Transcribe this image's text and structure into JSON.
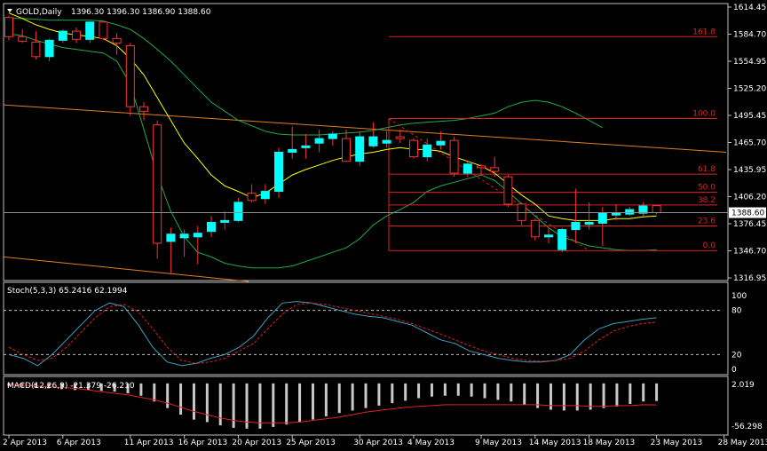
{
  "chart_header": {
    "symbol_timeframe": "GOLD,Daily",
    "ohlc": "1396.30 1396.30 1386.90 1388.60",
    "stoch_label": "Stoch(5,3,3) 65.2416 62.1994",
    "macd_label": "MACD(12,26,9) -21.379 -26.210"
  },
  "colors": {
    "background": "#000000",
    "grid_frame": "#c0c0c0",
    "bull_candle": "#00ffff",
    "bear_candle": "#000000",
    "bear_outline": "#ff3030",
    "wick": "#ff3030",
    "ma_line": "#ffff00",
    "bollinger": "#22aa44",
    "fibo": "#dd2222",
    "trend_channel": "#e08020",
    "stoch_main": "#40a0c0",
    "stoch_signal": "#e02020",
    "macd_hist": "#c8c8c8",
    "macd_signal": "#e02020",
    "price_tag": "#ffffff"
  },
  "chart_data": {
    "type": "candlestick",
    "symbol": "GOLD",
    "timeframe": "Daily",
    "x_tick_labels": [
      "2 Apr 2013",
      "6 Apr 2013",
      "11 Apr 2013",
      "16 Apr 2013",
      "20 Apr 2013",
      "25 Apr 2013",
      "30 Apr 2013",
      "4 May 2013",
      "9 May 2013",
      "14 May 2013",
      "18 May 2013",
      "23 May 2013",
      "28 May 2013"
    ],
    "x_tick_bar_index": [
      0,
      4,
      9,
      13,
      17,
      21,
      26,
      30,
      35,
      39,
      43,
      48,
      53
    ],
    "price_axis": {
      "ticks": [
        1614.45,
        1584.7,
        1554.95,
        1525.2,
        1495.45,
        1465.7,
        1435.95,
        1406.2,
        1376.45,
        1346.7,
        1316.95
      ],
      "ylim": [
        1316.95,
        1614.45
      ],
      "current_price": 1388.6
    },
    "candles": [
      {
        "o": 1603,
        "h": 1605,
        "l": 1578,
        "c": 1582
      },
      {
        "o": 1582,
        "h": 1590,
        "l": 1575,
        "c": 1577
      },
      {
        "o": 1576,
        "h": 1588,
        "l": 1557,
        "c": 1560
      },
      {
        "o": 1560,
        "h": 1580,
        "l": 1555,
        "c": 1578
      },
      {
        "o": 1578,
        "h": 1590,
        "l": 1575,
        "c": 1588
      },
      {
        "o": 1588,
        "h": 1592,
        "l": 1575,
        "c": 1579
      },
      {
        "o": 1579,
        "h": 1598,
        "l": 1575,
        "c": 1598
      },
      {
        "o": 1598,
        "h": 1598,
        "l": 1578,
        "c": 1580
      },
      {
        "o": 1580,
        "h": 1586,
        "l": 1562,
        "c": 1575
      },
      {
        "o": 1572,
        "h": 1575,
        "l": 1495,
        "c": 1505
      },
      {
        "o": 1505,
        "h": 1510,
        "l": 1490,
        "c": 1500
      },
      {
        "o": 1485,
        "h": 1490,
        "l": 1338,
        "c": 1355
      },
      {
        "o": 1357,
        "h": 1372,
        "l": 1322,
        "c": 1365
      },
      {
        "o": 1361,
        "h": 1370,
        "l": 1340,
        "c": 1365
      },
      {
        "o": 1362,
        "h": 1374,
        "l": 1332,
        "c": 1366
      },
      {
        "o": 1368,
        "h": 1385,
        "l": 1362,
        "c": 1378
      },
      {
        "o": 1378,
        "h": 1390,
        "l": 1370,
        "c": 1380
      },
      {
        "o": 1380,
        "h": 1405,
        "l": 1378,
        "c": 1400
      },
      {
        "o": 1410,
        "h": 1420,
        "l": 1400,
        "c": 1402
      },
      {
        "o": 1404,
        "h": 1420,
        "l": 1398,
        "c": 1412
      },
      {
        "o": 1412,
        "h": 1460,
        "l": 1405,
        "c": 1455
      },
      {
        "o": 1455,
        "h": 1483,
        "l": 1448,
        "c": 1458
      },
      {
        "o": 1460,
        "h": 1475,
        "l": 1448,
        "c": 1462
      },
      {
        "o": 1465,
        "h": 1480,
        "l": 1455,
        "c": 1470
      },
      {
        "o": 1470,
        "h": 1478,
        "l": 1462,
        "c": 1475
      },
      {
        "o": 1470,
        "h": 1480,
        "l": 1445,
        "c": 1445
      },
      {
        "o": 1445,
        "h": 1478,
        "l": 1440,
        "c": 1472
      },
      {
        "o": 1462,
        "h": 1488,
        "l": 1460,
        "c": 1472
      },
      {
        "o": 1465,
        "h": 1478,
        "l": 1460,
        "c": 1468
      },
      {
        "o": 1472,
        "h": 1480,
        "l": 1465,
        "c": 1470
      },
      {
        "o": 1468,
        "h": 1470,
        "l": 1448,
        "c": 1450
      },
      {
        "o": 1450,
        "h": 1470,
        "l": 1445,
        "c": 1463
      },
      {
        "o": 1463,
        "h": 1478,
        "l": 1458,
        "c": 1467
      },
      {
        "o": 1468,
        "h": 1472,
        "l": 1428,
        "c": 1432
      },
      {
        "o": 1432,
        "h": 1445,
        "l": 1428,
        "c": 1442
      },
      {
        "o": 1440,
        "h": 1442,
        "l": 1430,
        "c": 1438
      },
      {
        "o": 1438,
        "h": 1450,
        "l": 1428,
        "c": 1434
      },
      {
        "o": 1428,
        "h": 1430,
        "l": 1395,
        "c": 1398
      },
      {
        "o": 1398,
        "h": 1400,
        "l": 1375,
        "c": 1380
      },
      {
        "o": 1380,
        "h": 1382,
        "l": 1358,
        "c": 1362
      },
      {
        "o": 1362,
        "h": 1372,
        "l": 1355,
        "c": 1364
      },
      {
        "o": 1348,
        "h": 1372,
        "l": 1345,
        "c": 1370
      },
      {
        "o": 1370,
        "h": 1415,
        "l": 1355,
        "c": 1378
      },
      {
        "o": 1376,
        "h": 1400,
        "l": 1370,
        "c": 1378
      },
      {
        "o": 1377,
        "h": 1395,
        "l": 1352,
        "c": 1388
      },
      {
        "o": 1386,
        "h": 1398,
        "l": 1380,
        "c": 1388
      },
      {
        "o": 1387,
        "h": 1395,
        "l": 1385,
        "c": 1392
      },
      {
        "o": 1388,
        "h": 1400,
        "l": 1385,
        "c": 1396
      },
      {
        "o": 1396.3,
        "h": 1396.3,
        "l": 1386.9,
        "c": 1388.6
      }
    ],
    "ma_fast": [
      1608,
      1602,
      1595,
      1590,
      1586,
      1584,
      1582,
      1580,
      1572,
      1558,
      1540,
      1515,
      1490,
      1465,
      1448,
      1430,
      1418,
      1412,
      1405,
      1410,
      1420,
      1430,
      1436,
      1441,
      1446,
      1450,
      1453,
      1455,
      1458,
      1460,
      1458,
      1458,
      1456,
      1450,
      1445,
      1440,
      1432,
      1420,
      1408,
      1398,
      1385,
      1382,
      1380,
      1380,
      1380,
      1382,
      1382,
      1384,
      1385
    ],
    "boll_upper": [
      1602,
      1602,
      1601,
      1600,
      1600,
      1600,
      1600,
      1599,
      1595,
      1590,
      1580,
      1568,
      1555,
      1540,
      1525,
      1510,
      1500,
      1490,
      1484,
      1478,
      1475,
      1474,
      1474,
      1474,
      1475,
      1476,
      1477,
      1479,
      1482,
      1485,
      1487,
      1488,
      1489,
      1490,
      1492,
      1495,
      1498,
      1505,
      1510,
      1512,
      1510,
      1505,
      1498,
      1490,
      1482
    ],
    "boll_lower": [
      1585,
      1583,
      1578,
      1574,
      1570,
      1568,
      1566,
      1564,
      1555,
      1530,
      1480,
      1430,
      1390,
      1362,
      1345,
      1340,
      1333,
      1330,
      1328,
      1328,
      1328,
      1330,
      1335,
      1340,
      1345,
      1350,
      1360,
      1375,
      1385,
      1392,
      1400,
      1412,
      1418,
      1422,
      1426,
      1430,
      1424,
      1412,
      1398,
      1385,
      1372,
      1362,
      1357,
      1352,
      1350,
      1348,
      1347,
      1347,
      1348
    ],
    "fibonacci": {
      "levels": [
        "161.8",
        "100.0",
        "61.8",
        "50.0",
        "38.2",
        "23.6",
        "0.0"
      ],
      "prices": [
        1582,
        1492,
        1431,
        1411,
        1397,
        1374,
        1347
      ]
    },
    "stochastic": {
      "label": "Stoch(5,3,3)",
      "main": 65.2416,
      "signal": 62.1994,
      "axis_ticks": [
        100,
        80,
        20,
        0
      ],
      "levels": [
        80,
        20
      ],
      "main_series": [
        20,
        15,
        5,
        20,
        40,
        60,
        80,
        90,
        85,
        60,
        30,
        10,
        5,
        8,
        15,
        20,
        30,
        45,
        70,
        90,
        92,
        90,
        85,
        80,
        75,
        72,
        70,
        65,
        60,
        50,
        40,
        35,
        25,
        20,
        15,
        12,
        10,
        10,
        12,
        20,
        40,
        55,
        62,
        65,
        68,
        70
      ],
      "signal_series": [
        30,
        20,
        12,
        15,
        30,
        50,
        70,
        85,
        88,
        78,
        55,
        30,
        12,
        8,
        10,
        15,
        25,
        35,
        55,
        75,
        88,
        90,
        88,
        84,
        80,
        76,
        72,
        68,
        62,
        55,
        48,
        40,
        32,
        25,
        20,
        15,
        12,
        11,
        12,
        15,
        25,
        40,
        52,
        58,
        62,
        64
      ]
    },
    "macd": {
      "label": "MACD(12,26,9)",
      "main": -21.379,
      "signal": -26.21,
      "axis_ticks": [
        "2.019",
        "-56.298"
      ],
      "ylim": [
        -56.298,
        2.019
      ],
      "histogram": [
        -3,
        -4,
        -5,
        -6,
        -7,
        -8,
        -8,
        -9,
        -10,
        -12,
        -15,
        -22,
        -30,
        -38,
        -44,
        -47,
        -51,
        -54,
        -55,
        -55,
        -53,
        -50,
        -47,
        -44,
        -40,
        -36,
        -33,
        -30,
        -27,
        -24,
        -21,
        -18,
        -16,
        -15,
        -15,
        -16,
        -18,
        -20,
        -22,
        -26,
        -30,
        -32,
        -33,
        -33,
        -32,
        -30,
        -28,
        -25,
        -22,
        -21.379
      ],
      "signal_series": [
        -1,
        -2,
        -3,
        -4,
        -5,
        -6,
        -8,
        -10,
        -12,
        -14,
        -17,
        -20,
        -24,
        -29,
        -34,
        -38,
        -42,
        -45,
        -47,
        -48,
        -48,
        -48,
        -47,
        -45,
        -43,
        -41,
        -38,
        -35,
        -33,
        -31,
        -29,
        -28,
        -27,
        -26,
        -26,
        -26,
        -26,
        -26,
        -26,
        -26,
        -26,
        -27,
        -27,
        -27,
        -28,
        -28,
        -27,
        -27,
        -26,
        -26.21
      ]
    }
  }
}
